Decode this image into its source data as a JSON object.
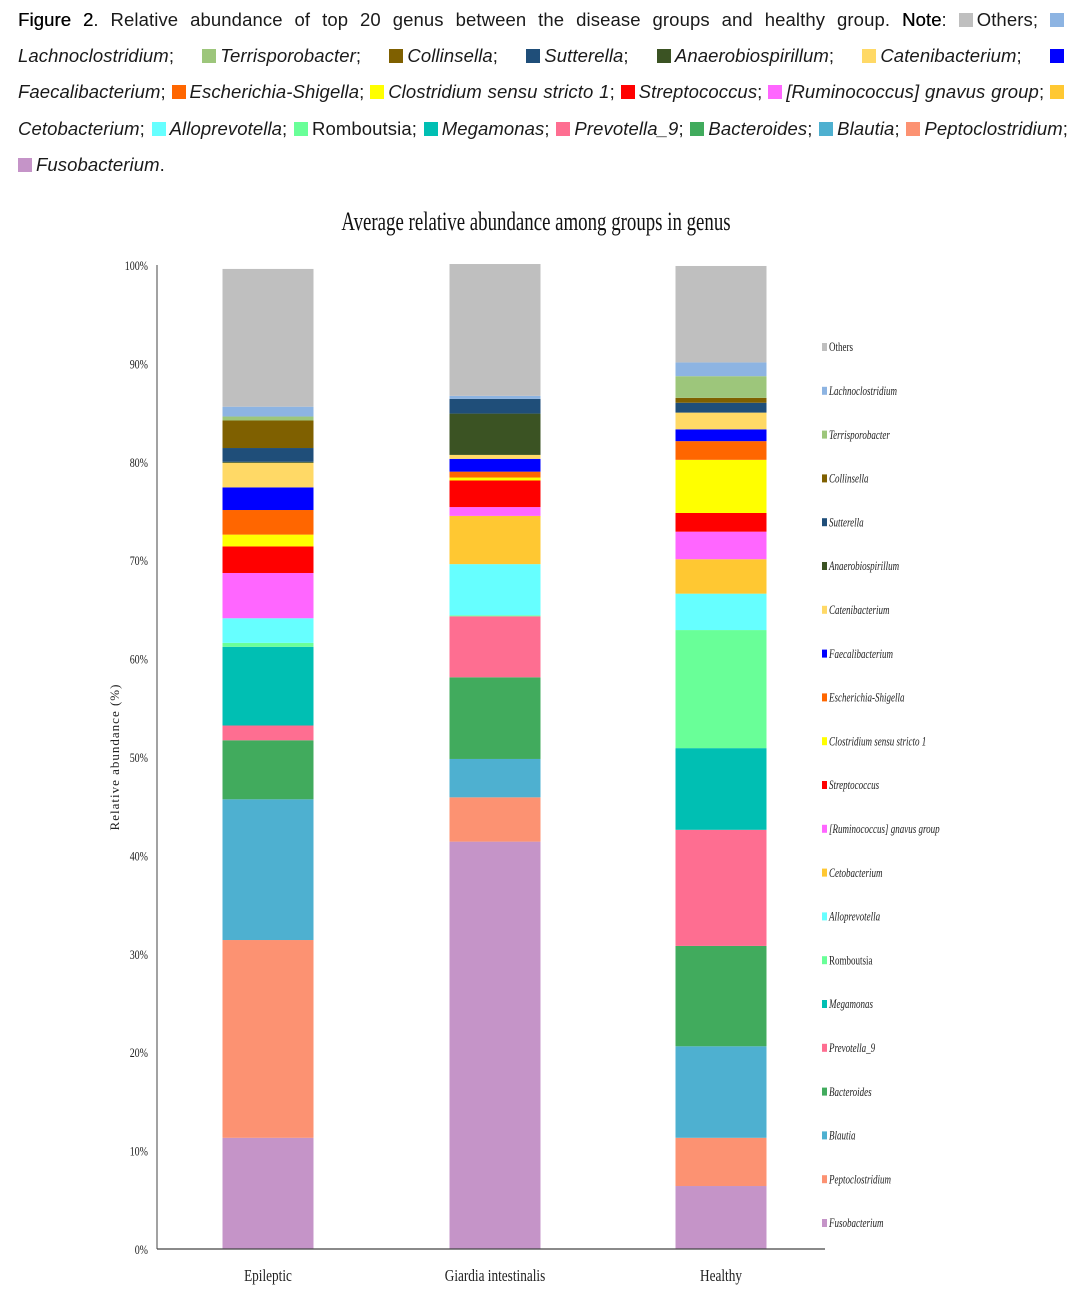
{
  "caption": {
    "label": "Figure 2",
    "text": ". Relative abundance of top 20 genus between the disease groups and healthy group. ",
    "note_label": "Note",
    "note_sep": ": "
  },
  "chart_data": {
    "type": "bar",
    "stacked": true,
    "title": "Average relative abundance among groups in genus",
    "xlabel": "",
    "ylabel": "Relative abundance (%)",
    "ylim": [
      0,
      100
    ],
    "yticks": [
      "0%",
      "10%",
      "20%",
      "30%",
      "40%",
      "50%",
      "60%",
      "70%",
      "80%",
      "90%",
      "100%"
    ],
    "categories": [
      "Epileptic",
      "Giardia intestinalis",
      "Healthy"
    ],
    "legend_position": "right",
    "series": [
      {
        "name": "Fusobacterium",
        "caption": "Fusobacterium",
        "italic": true,
        "color": "#c594c8",
        "values": [
          11.3,
          41.4,
          6.4
        ]
      },
      {
        "name": "Peptoclostridium",
        "caption": "Peptoclostridium",
        "italic": true,
        "color": "#fc9272",
        "values": [
          20.1,
          4.5,
          4.9
        ]
      },
      {
        "name": "Blautia",
        "caption": "Blautia",
        "italic": true,
        "color": "#4eb0d0",
        "values": [
          14.3,
          3.9,
          9.3
        ]
      },
      {
        "name": "Bacteroides",
        "caption": "Bacteroides",
        "italic": true,
        "color": "#41ab5d",
        "values": [
          6.0,
          8.3,
          10.2
        ]
      },
      {
        "name": "Prevotella_9",
        "caption": "Prevotella_9",
        "italic": true,
        "color": "#fe6e91",
        "values": [
          1.5,
          6.2,
          11.8
        ]
      },
      {
        "name": "Megamonas",
        "caption": "Megamonas",
        "italic": true,
        "color": "#00bfb3",
        "values": [
          8.0,
          0.0,
          8.3
        ]
      },
      {
        "name": "Romboutsia",
        "caption": "Romboutsia",
        "italic": false,
        "color": "#69ff98",
        "values": [
          0.4,
          0.1,
          12.0
        ]
      },
      {
        "name": "Alloprevotella",
        "caption": "Alloprevotella",
        "italic": true,
        "color": "#66ffff",
        "values": [
          2.5,
          5.2,
          3.7
        ]
      },
      {
        "name": "Cetobacterium",
        "caption": "Cetobacterium",
        "italic": true,
        "color": "#ffc832",
        "values": [
          0.0,
          4.9,
          3.5
        ]
      },
      {
        "name": "[Ruminococcus] gnavus group",
        "caption": "[Ruminococcus] gnavus group",
        "italic": true,
        "color": "#ff66ff",
        "values": [
          4.6,
          0.9,
          2.8
        ]
      },
      {
        "name": "Streptococcus",
        "caption": "Streptococcus",
        "italic": true,
        "color": "#ff0000",
        "values": [
          2.7,
          2.7,
          1.9
        ]
      },
      {
        "name": "Clostridium sensu stricto 1",
        "caption": "Clostridium sensu stricto 1",
        "italic": true,
        "color": "#ffff00",
        "values": [
          1.2,
          0.3,
          5.4
        ]
      },
      {
        "name": "Escherichia-Shigella",
        "caption": "Escherichia-Shigella",
        "italic": true,
        "color": "#ff6600",
        "values": [
          2.5,
          0.6,
          1.9
        ]
      },
      {
        "name": "Faecalibacterium",
        "caption": "Faecalibacterium",
        "italic": true,
        "color": "#0000ff",
        "values": [
          2.3,
          1.3,
          1.2
        ]
      },
      {
        "name": "Catenibacterium",
        "caption": "Catenibacterium",
        "italic": true,
        "color": "#ffd966",
        "values": [
          2.5,
          0.4,
          1.7
        ]
      },
      {
        "name": "Anaerobiospirillum",
        "caption": "Anaerobiospirillum",
        "italic": true,
        "color": "#3b5323",
        "values": [
          0.1,
          4.2,
          0.0
        ]
      },
      {
        "name": "Sutterella",
        "caption": "Sutterella",
        "italic": true,
        "color": "#1f4e79",
        "values": [
          1.4,
          1.5,
          1.0
        ]
      },
      {
        "name": "Collinsella",
        "caption": "Collinsella",
        "italic": true,
        "color": "#7f6000",
        "values": [
          2.8,
          0.0,
          0.5
        ]
      },
      {
        "name": "Terrisporobacter",
        "caption": "Terrisporobacter",
        "italic": true,
        "color": "#9dc67b",
        "values": [
          0.4,
          0.0,
          2.2
        ]
      },
      {
        "name": "Lachnoclostridium",
        "caption": "Lachnoclostridium",
        "italic": true,
        "color": "#8db4e2",
        "values": [
          1.0,
          0.3,
          1.4
        ]
      },
      {
        "name": "Others",
        "caption": "Others",
        "italic": false,
        "color": "#bfbfbf",
        "values": [
          14.0,
          13.4,
          9.8
        ]
      }
    ]
  }
}
